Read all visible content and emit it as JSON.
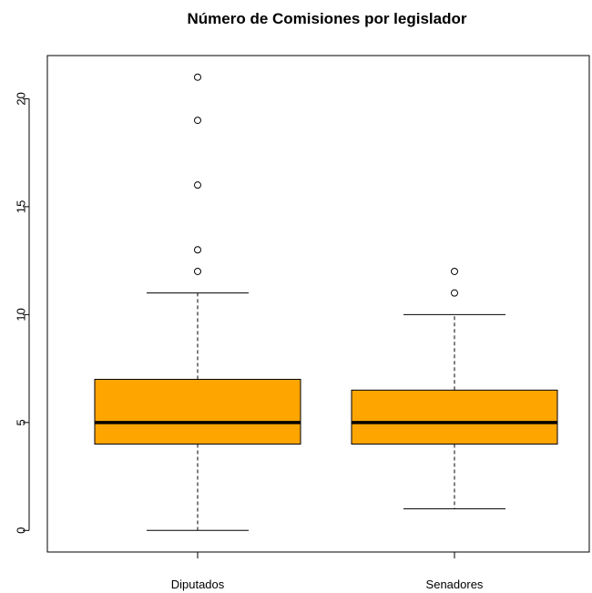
{
  "chart_data": {
    "type": "boxplot",
    "title": "Número de Comisiones por legislador",
    "xlabel": "",
    "ylabel": "",
    "categories": [
      "Diputados",
      "Senadores"
    ],
    "ylim": [
      -1,
      22
    ],
    "yticks": [
      0,
      5,
      10,
      15,
      20
    ],
    "box_color": "#FFA500",
    "grid": false,
    "series": [
      {
        "category": "Diputados",
        "whisker_low": 0,
        "q1": 4,
        "median": 5,
        "q3": 7,
        "whisker_high": 11,
        "outliers": [
          12,
          13,
          16,
          19,
          21
        ]
      },
      {
        "category": "Senadores",
        "whisker_low": 1,
        "q1": 4,
        "median": 5,
        "q3": 6.5,
        "whisker_high": 10,
        "outliers": [
          11,
          12
        ]
      }
    ]
  }
}
